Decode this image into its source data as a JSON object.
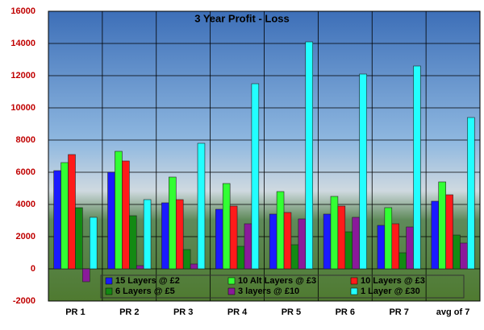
{
  "chart_data": {
    "type": "bar",
    "title": "3 Year Profit - Loss",
    "categories": [
      "PR 1",
      "PR 2",
      "PR 3",
      "PR 4",
      "PR 5",
      "PR 6",
      "PR 7",
      "avg of 7"
    ],
    "series": [
      {
        "name": "15 Layers @ £2",
        "color": "#1a1aff",
        "values": [
          6100,
          6000,
          4100,
          3700,
          3400,
          3400,
          2700,
          4200
        ]
      },
      {
        "name": "10 Alt Layers @ £3",
        "color": "#33ff33",
        "values": [
          6600,
          7300,
          5700,
          5300,
          4800,
          4500,
          3800,
          5400
        ]
      },
      {
        "name": "10 Layers @ £3",
        "color": "#ff1a1a",
        "values": [
          7100,
          6700,
          4300,
          3900,
          3500,
          3900,
          2800,
          4600
        ]
      },
      {
        "name": "6 Layers @ £5",
        "color": "#138a13",
        "values": [
          3800,
          3300,
          1200,
          1400,
          1500,
          2300,
          1000,
          2100
        ]
      },
      {
        "name": "3 layers @ £10",
        "color": "#8a1a9a",
        "values": [
          -800,
          200,
          300,
          2800,
          3100,
          3200,
          2600,
          1600
        ]
      },
      {
        "name": "1 Layer @ £30",
        "color": "#22ffff",
        "values": [
          3200,
          4300,
          7800,
          11500,
          14100,
          12100,
          12600,
          9400
        ]
      }
    ],
    "ylim": [
      -2000,
      16000
    ],
    "yticks": [
      -2000,
      0,
      2000,
      4000,
      6000,
      8000,
      10000,
      12000,
      14000,
      16000
    ],
    "grid": true,
    "legend": "bottom"
  }
}
